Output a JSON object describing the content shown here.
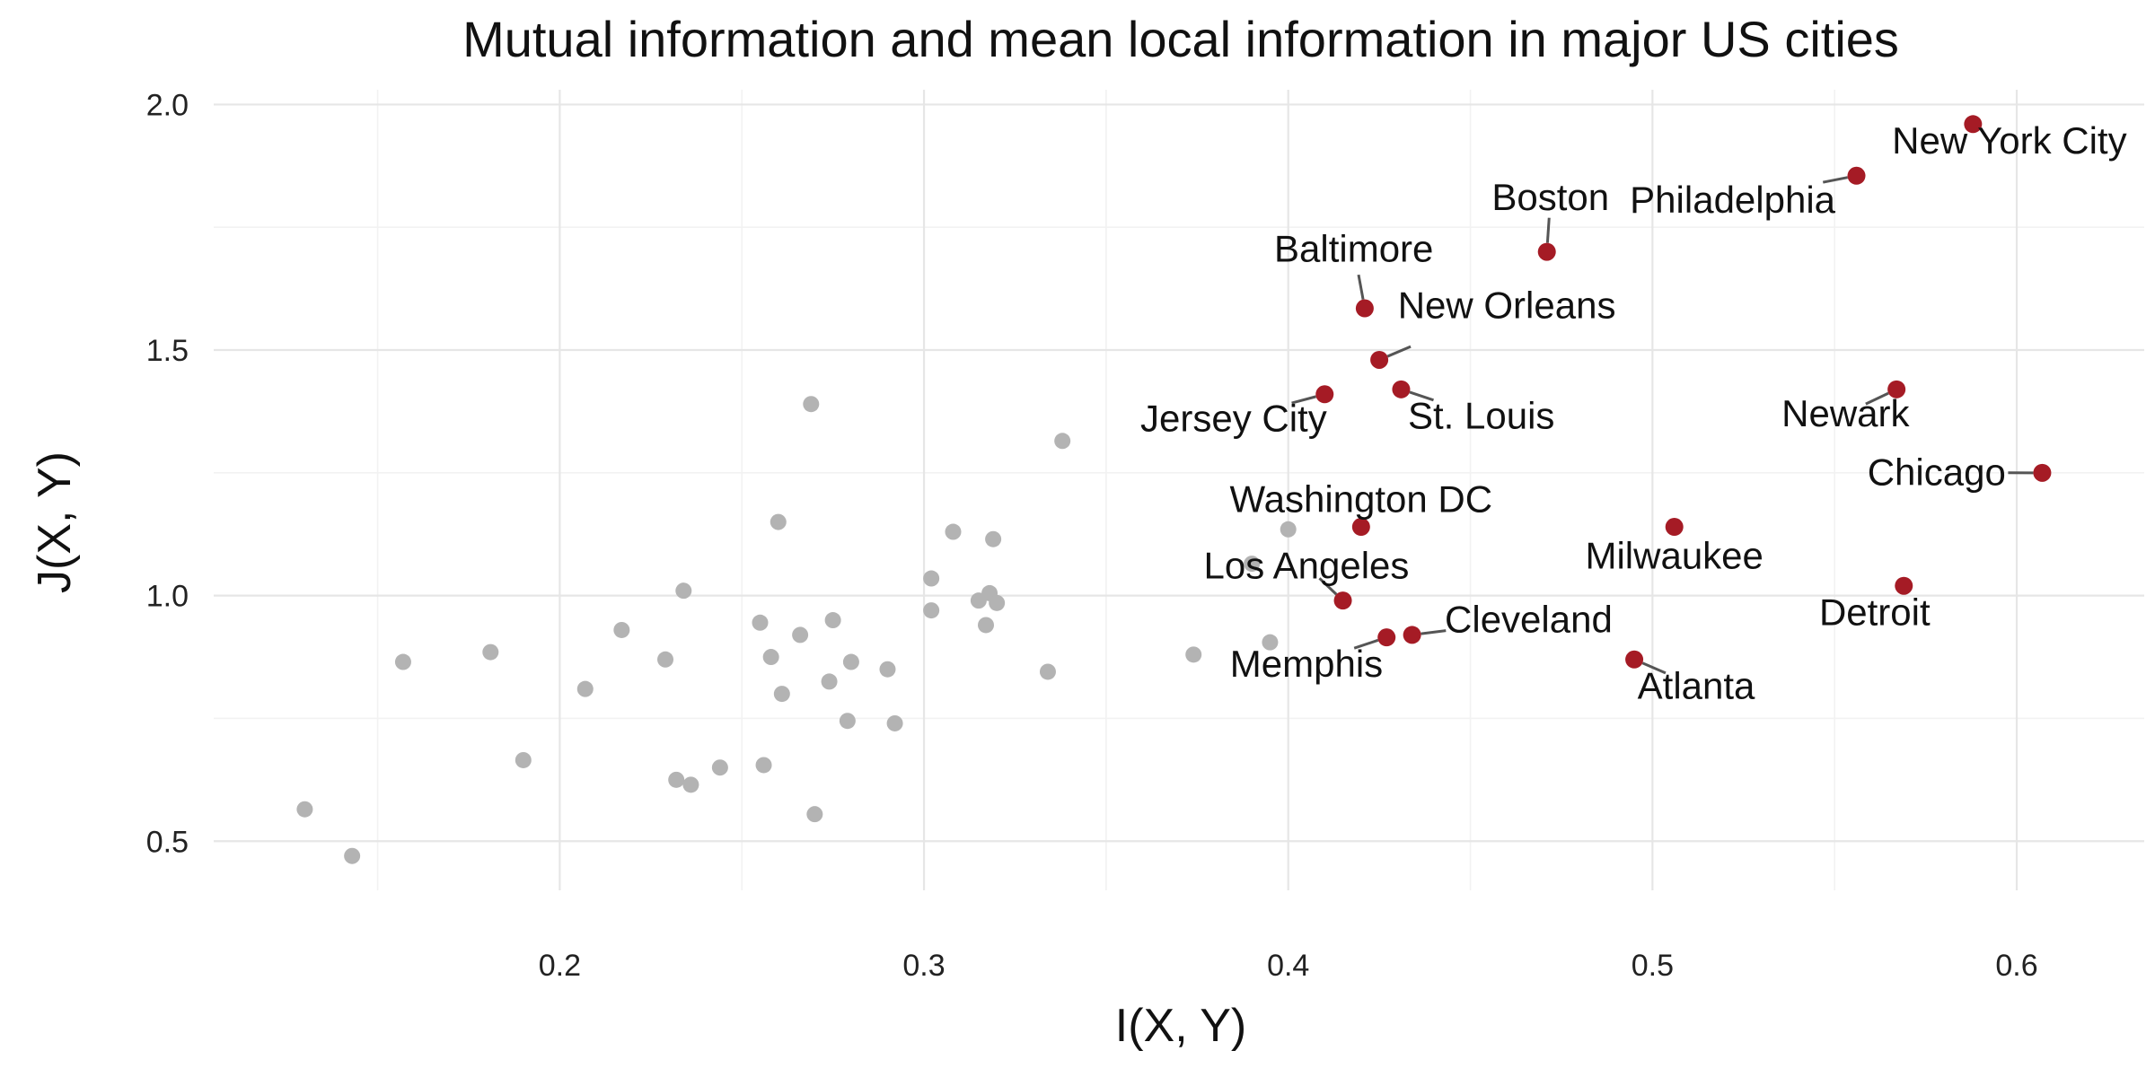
{
  "chart_data": {
    "type": "scatter",
    "title": "Mutual information and mean local information in major US cities",
    "xlabel": "I(X, Y)",
    "ylabel": "J(X, Y)",
    "xlim": [
      0.105,
      0.635
    ],
    "ylim": [
      0.4,
      2.03
    ],
    "x_ticks": [
      0.2,
      0.3,
      0.4,
      0.5,
      0.6
    ],
    "x_tick_labels": [
      "0.2",
      "0.3",
      "0.4",
      "0.5",
      "0.6"
    ],
    "y_ticks": [
      0.5,
      1.0,
      1.5,
      2.0
    ],
    "y_tick_labels": [
      "0.5",
      "1.0",
      "1.5",
      "2.0"
    ],
    "grid": true,
    "colors": {
      "highlight": "#a51b25",
      "other": "#b3b3b3",
      "leader": "#555555"
    },
    "highlighted": [
      {
        "name": "New York City",
        "x": 0.588,
        "y": 1.96,
        "label_x": 0.598,
        "label_y": 1.9,
        "anchor": "middle"
      },
      {
        "name": "Philadelphia",
        "x": 0.556,
        "y": 1.855,
        "label_x": 0.522,
        "label_y": 1.78,
        "anchor": "middle"
      },
      {
        "name": "Boston",
        "x": 0.471,
        "y": 1.7,
        "label_x": 0.472,
        "label_y": 1.785,
        "anchor": "middle"
      },
      {
        "name": "Baltimore",
        "x": 0.421,
        "y": 1.585,
        "label_x": 0.418,
        "label_y": 1.68,
        "anchor": "middle"
      },
      {
        "name": "New Orleans",
        "x": 0.425,
        "y": 1.48,
        "label_x": 0.46,
        "label_y": 1.565,
        "anchor": "middle"
      },
      {
        "name": "Jersey City",
        "x": 0.41,
        "y": 1.41,
        "label_x": 0.385,
        "label_y": 1.335,
        "anchor": "middle"
      },
      {
        "name": "St. Louis",
        "x": 0.431,
        "y": 1.42,
        "label_x": 0.453,
        "label_y": 1.34,
        "anchor": "middle"
      },
      {
        "name": "Newark",
        "x": 0.567,
        "y": 1.42,
        "label_x": 0.553,
        "label_y": 1.345,
        "anchor": "middle"
      },
      {
        "name": "Chicago",
        "x": 0.607,
        "y": 1.25,
        "label_x": 0.578,
        "label_y": 1.225,
        "anchor": "middle"
      },
      {
        "name": "Washington DC",
        "x": 0.42,
        "y": 1.14,
        "label_x": 0.42,
        "label_y": 1.17,
        "anchor": "middle"
      },
      {
        "name": "Milwaukee",
        "x": 0.506,
        "y": 1.14,
        "label_x": 0.506,
        "label_y": 1.055,
        "anchor": "middle"
      },
      {
        "name": "Los Angeles",
        "x": 0.415,
        "y": 0.99,
        "label_x": 0.405,
        "label_y": 1.035,
        "anchor": "middle"
      },
      {
        "name": "Detroit",
        "x": 0.569,
        "y": 1.02,
        "label_x": 0.561,
        "label_y": 0.94,
        "anchor": "middle"
      },
      {
        "name": "Cleveland",
        "x": 0.434,
        "y": 0.92,
        "label_x": 0.466,
        "label_y": 0.925,
        "anchor": "middle"
      },
      {
        "name": "Memphis",
        "x": 0.427,
        "y": 0.915,
        "label_x": 0.405,
        "label_y": 0.835,
        "anchor": "middle"
      },
      {
        "name": "Atlanta",
        "x": 0.495,
        "y": 0.87,
        "label_x": 0.512,
        "label_y": 0.79,
        "anchor": "middle"
      }
    ],
    "others": [
      {
        "x": 0.13,
        "y": 0.565
      },
      {
        "x": 0.143,
        "y": 0.47
      },
      {
        "x": 0.157,
        "y": 0.865
      },
      {
        "x": 0.181,
        "y": 0.885
      },
      {
        "x": 0.19,
        "y": 0.665
      },
      {
        "x": 0.207,
        "y": 0.81
      },
      {
        "x": 0.217,
        "y": 0.93
      },
      {
        "x": 0.229,
        "y": 0.87
      },
      {
        "x": 0.232,
        "y": 0.625
      },
      {
        "x": 0.234,
        "y": 1.01
      },
      {
        "x": 0.236,
        "y": 0.615
      },
      {
        "x": 0.244,
        "y": 0.65
      },
      {
        "x": 0.255,
        "y": 0.945
      },
      {
        "x": 0.256,
        "y": 0.655
      },
      {
        "x": 0.258,
        "y": 0.875
      },
      {
        "x": 0.26,
        "y": 1.15
      },
      {
        "x": 0.261,
        "y": 0.8
      },
      {
        "x": 0.266,
        "y": 0.92
      },
      {
        "x": 0.269,
        "y": 1.39
      },
      {
        "x": 0.27,
        "y": 0.555
      },
      {
        "x": 0.274,
        "y": 0.825
      },
      {
        "x": 0.275,
        "y": 0.95
      },
      {
        "x": 0.279,
        "y": 0.745
      },
      {
        "x": 0.28,
        "y": 0.865
      },
      {
        "x": 0.29,
        "y": 0.85
      },
      {
        "x": 0.292,
        "y": 0.74
      },
      {
        "x": 0.302,
        "y": 0.97
      },
      {
        "x": 0.302,
        "y": 1.035
      },
      {
        "x": 0.308,
        "y": 1.13
      },
      {
        "x": 0.315,
        "y": 0.99
      },
      {
        "x": 0.317,
        "y": 0.94
      },
      {
        "x": 0.318,
        "y": 1.005
      },
      {
        "x": 0.319,
        "y": 1.115
      },
      {
        "x": 0.32,
        "y": 0.985
      },
      {
        "x": 0.334,
        "y": 0.845
      },
      {
        "x": 0.338,
        "y": 1.315
      },
      {
        "x": 0.374,
        "y": 0.88
      },
      {
        "x": 0.39,
        "y": 1.065
      },
      {
        "x": 0.395,
        "y": 0.905
      },
      {
        "x": 0.4,
        "y": 1.135
      }
    ]
  }
}
